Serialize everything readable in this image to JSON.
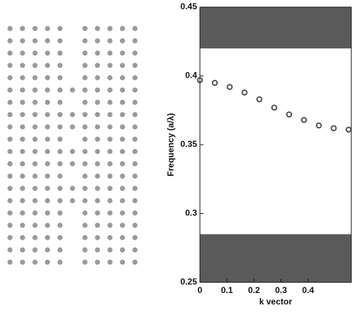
{
  "chart_data": {
    "type": "scatter",
    "x_label": "k vector",
    "y_label": "Frequency (a/λ)",
    "x": [
      0,
      0.055,
      0.11,
      0.165,
      0.22,
      0.275,
      0.33,
      0.385,
      0.44,
      0.495,
      0.55
    ],
    "values": [
      0.397,
      0.395,
      0.392,
      0.388,
      0.383,
      0.377,
      0.372,
      0.368,
      0.364,
      0.362,
      0.361
    ],
    "color": "#555555",
    "shaded_regions": [
      [
        0.25,
        0.285
      ],
      [
        0.42,
        0.45
      ]
    ],
    "shaded_color": "#5a5a5a",
    "xlim": [
      0,
      0.56
    ],
    "xticks": [
      0,
      0.1,
      0.2,
      0.3,
      0.4
    ],
    "ylim": [
      0.25,
      0.45
    ],
    "yticks": [
      0.25,
      0.3,
      0.35,
      0.4,
      0.45
    ]
  }
}
